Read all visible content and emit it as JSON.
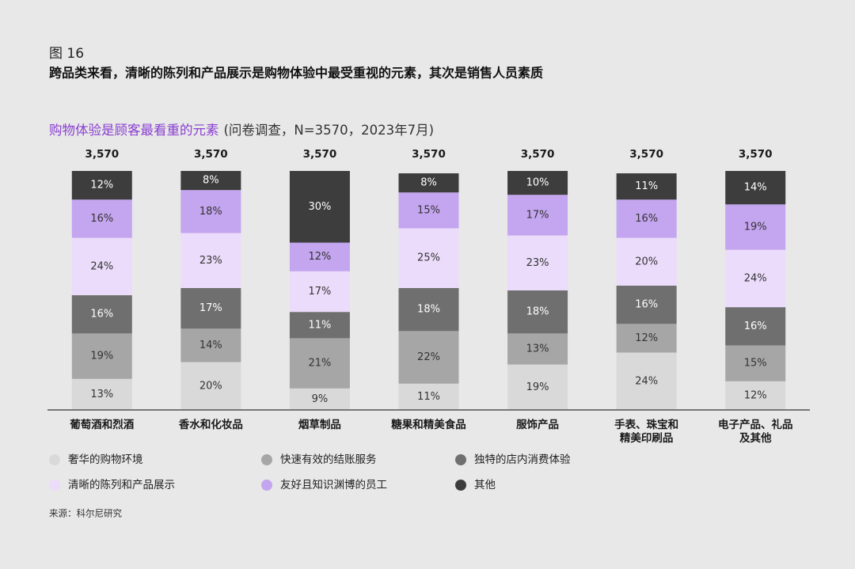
{
  "chart_data": {
    "type": "stacked_bar",
    "figure_number": "图 16",
    "title": "跨品类来看，清晰的陈列和产品展示是购物体验中最受重视的元素，其次是销售人员素质",
    "subtitle": "购物体验是顾客最看重的元素",
    "subtitle_note": "(问卷调查，N=3570，2023年7月)",
    "source": "来源：科尔尼研究",
    "categories": [
      "葡萄酒和烈酒",
      "香水和化妆品",
      "烟草制品",
      "糖果和精美食品",
      "服饰产品",
      "手表、珠宝和\n精美印刷品",
      "电子产品、礼品\n及其他"
    ],
    "totals": {
      "values": [
        3570,
        3570,
        3570,
        3570,
        3570,
        3570,
        3570
      ],
      "value_labels": [
        "3,570",
        "3,570",
        "3,570",
        "3,570",
        "3,570",
        "3,570",
        "3,570"
      ]
    },
    "ylim": [
      0,
      100
    ],
    "series": [
      {
        "name": "奢华的购物环境",
        "color": "#d9d9d9",
        "values": [
          13,
          20,
          9,
          11,
          19,
          24,
          12
        ],
        "value_labels": [
          "13%",
          "20%",
          "9%",
          "11%",
          "19%",
          "24%",
          "12%"
        ]
      },
      {
        "name": "快速有效的结账服务",
        "color": "#a6a6a6",
        "values": [
          19,
          14,
          21,
          22,
          13,
          12,
          15
        ],
        "value_labels": [
          "19%",
          "14%",
          "21%",
          "22%",
          "13%",
          "12%",
          "15%"
        ]
      },
      {
        "name": "独特的店内消费体验",
        "color": "#6f6f6f",
        "values": [
          16,
          17,
          11,
          18,
          18,
          16,
          16
        ],
        "value_labels": [
          "16%",
          "17%",
          "11%",
          "18%",
          "18%",
          "16%",
          "16%"
        ]
      },
      {
        "name": "清晰的陈列和产品展示",
        "color": "#ebdcfb",
        "values": [
          24,
          23,
          17,
          25,
          23,
          20,
          24
        ],
        "value_labels": [
          "24%",
          "23%",
          "17%",
          "25%",
          "23%",
          "20%",
          "24%"
        ]
      },
      {
        "name": "友好且知识渊博的员工",
        "color": "#c4a5ef",
        "values": [
          16,
          18,
          12,
          15,
          17,
          16,
          19
        ],
        "value_labels": [
          "16%",
          "18%",
          "12%",
          "15%",
          "17%",
          "16%",
          "19%"
        ]
      },
      {
        "name": "其他",
        "color": "#3d3d3d",
        "values": [
          12,
          8,
          30,
          8,
          10,
          11,
          14
        ],
        "value_labels": [
          "12%",
          "8%",
          "30%",
          "8%",
          "10%",
          "11%",
          "14%"
        ]
      }
    ]
  }
}
